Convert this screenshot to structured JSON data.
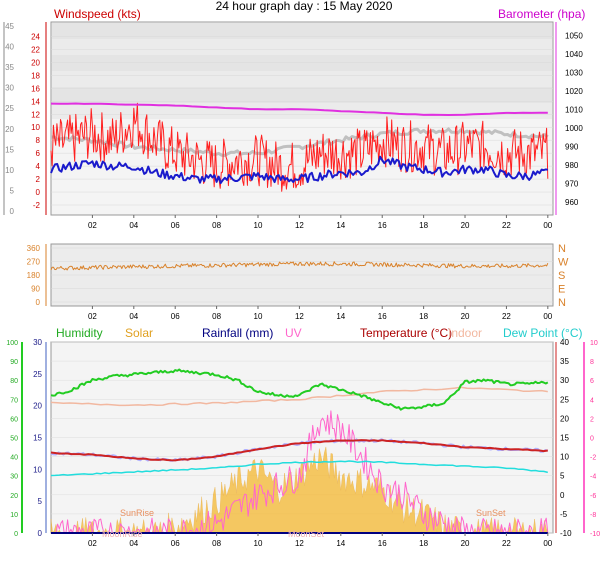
{
  "title": "24 hour graph day : 15 May 2020",
  "colors": {
    "wind": "#ff2020",
    "gust_avg": "#1a1acc",
    "pressure": "#e030e0",
    "direction": "#d9822b",
    "humidity": "#22cc22",
    "solar": "#f5b830",
    "rainfall": "#000080",
    "uv": "#ff66cc",
    "temperature": "#cc2222",
    "indoor": "#f2b8a0",
    "dewpoint": "#22dddd",
    "panel_bg": "#e8e8e8"
  },
  "x_ticks": [
    "02",
    "04",
    "06",
    "08",
    "10",
    "12",
    "14",
    "16",
    "18",
    "20",
    "22",
    "00"
  ],
  "panel1": {
    "left_label": "Windspeed (kts)",
    "right_label": "Barometer (hpa)",
    "left_outer_ticks": [
      "0",
      "5",
      "10",
      "15",
      "20",
      "25",
      "30",
      "35",
      "40",
      "45"
    ],
    "left_inner_ticks": [
      "-2",
      "0",
      "2",
      "4",
      "6",
      "8",
      "10",
      "12",
      "14",
      "16",
      "18",
      "20",
      "22",
      "24"
    ],
    "right_ticks": [
      "960",
      "970",
      "980",
      "990",
      "1000",
      "1010",
      "1020",
      "1030",
      "1040",
      "1050"
    ]
  },
  "panel2": {
    "left_ticks": [
      "0",
      "90",
      "180",
      "270",
      "360"
    ],
    "right_ticks": [
      "N",
      "E",
      "S",
      "W",
      "N"
    ]
  },
  "panel3": {
    "labels": {
      "humidity": "Humidity",
      "solar": "Solar",
      "rainfall": "Rainfall (mm)",
      "uv": "UV",
      "temperature": "Temperature (°C)",
      "indoor": "Indoor",
      "dewpoint": "Dew Point (°C)"
    },
    "humidity_ticks": [
      "0",
      "10",
      "20",
      "30",
      "40",
      "50",
      "60",
      "70",
      "80",
      "90",
      "100"
    ],
    "rain_ticks": [
      "0",
      "5",
      "10",
      "15",
      "20",
      "25",
      "30"
    ],
    "temp_ticks": [
      "-10",
      "-5",
      "0",
      "5",
      "10",
      "15",
      "20",
      "25",
      "30",
      "35",
      "40"
    ],
    "uv_ticks": [
      "-10",
      "-8",
      "-6",
      "-4",
      "-2",
      "0",
      "2",
      "4",
      "6",
      "8",
      "10"
    ],
    "annotations": {
      "sunrise": "SunRise",
      "sunset": "SunSet",
      "moonrise": "MoonRise",
      "moonset": "MoonSet"
    }
  },
  "chart_data": [
    {
      "type": "line",
      "x_unit": "hour",
      "x_range": [
        0,
        24
      ],
      "series": [
        {
          "name": "Windspeed (kts)",
          "axis": "left",
          "x": [
            0,
            1,
            2,
            3,
            4,
            5,
            6,
            7,
            8,
            9,
            10,
            11,
            12,
            13,
            14,
            15,
            16,
            17,
            18,
            19,
            20,
            21,
            22,
            23,
            24
          ],
          "values": [
            7,
            8,
            9,
            8,
            11,
            8,
            6,
            5,
            4,
            5,
            5,
            4,
            4,
            6,
            6,
            6,
            8,
            7,
            7,
            6,
            7,
            7,
            6,
            6,
            6
          ]
        },
        {
          "name": "Average speed",
          "axis": "left",
          "x": [
            0,
            1,
            2,
            3,
            4,
            5,
            6,
            7,
            8,
            9,
            10,
            11,
            12,
            13,
            14,
            15,
            16,
            17,
            18,
            19,
            20,
            21,
            22,
            23,
            24
          ],
          "values": [
            3.5,
            4,
            4.5,
            4,
            4,
            3,
            2.5,
            2,
            2,
            2.2,
            2.5,
            2,
            2,
            2.5,
            3,
            3,
            5,
            4,
            3.5,
            3,
            3.5,
            3.5,
            2.5,
            2.5,
            3
          ]
        },
        {
          "name": "Barometer (hpa)",
          "axis": "right",
          "x": [
            0,
            2,
            4,
            6,
            8,
            10,
            12,
            14,
            16,
            18,
            20,
            22,
            23.9
          ],
          "values": [
            1013,
            1013,
            1012.5,
            1012,
            1011,
            1010,
            1010,
            1009,
            1008,
            1007,
            1007,
            1008,
            1008
          ]
        },
        {
          "name": "Gust trend",
          "axis": "left",
          "x": [
            0,
            2,
            4,
            6,
            8,
            10,
            12,
            14,
            16,
            18,
            20,
            22,
            24
          ],
          "values": [
            8.5,
            8,
            7,
            6.5,
            6,
            6,
            7,
            8,
            9,
            9.5,
            9.5,
            9,
            8.5
          ]
        }
      ],
      "ylim_left": [
        -2,
        25
      ],
      "ylim_right": [
        955,
        1055
      ]
    },
    {
      "type": "line",
      "series": [
        {
          "name": "Wind direction",
          "x": [
            0,
            2,
            4,
            6,
            8,
            10,
            12,
            14,
            16,
            18,
            20,
            22,
            24
          ],
          "values": [
            225,
            230,
            235,
            240,
            245,
            250,
            255,
            255,
            250,
            245,
            240,
            240,
            245
          ]
        }
      ],
      "ylim": [
        0,
        360
      ]
    },
    {
      "type": "area",
      "series": [
        {
          "name": "Humidity",
          "axis": "humidity",
          "x": [
            0,
            1,
            2,
            3,
            4,
            5,
            6,
            7,
            8,
            9,
            10,
            11,
            12,
            13,
            14,
            15,
            16,
            17,
            18,
            19,
            20,
            21,
            22,
            23,
            24
          ],
          "values": [
            72,
            75,
            80,
            82,
            83,
            84,
            85,
            84,
            83,
            80,
            74,
            72,
            72,
            78,
            75,
            72,
            68,
            65,
            66,
            68,
            79,
            80,
            78,
            78,
            79
          ]
        },
        {
          "name": "Solar",
          "axis": "rain",
          "x": [
            0,
            5,
            6,
            7,
            8,
            9,
            10,
            11,
            12,
            13,
            14,
            15,
            16,
            17,
            18,
            19,
            20,
            24
          ],
          "values": [
            0,
            0,
            1,
            3,
            5,
            8,
            10,
            7,
            9,
            12,
            9,
            8,
            7,
            4,
            3,
            1,
            0,
            0
          ]
        },
        {
          "name": "UV",
          "axis": "uv",
          "x": [
            0,
            6,
            8,
            10,
            12,
            13,
            14,
            15,
            16,
            17,
            18,
            19,
            20,
            24
          ],
          "values": [
            -10,
            -10,
            -9,
            -6,
            -4,
            2,
            1,
            -2,
            -5,
            -6,
            -8,
            -9,
            -10,
            -10
          ]
        },
        {
          "name": "Temperature (°C)",
          "axis": "temp",
          "x": [
            0,
            2,
            4,
            6,
            8,
            10,
            12,
            14,
            16,
            18,
            20,
            22,
            24
          ],
          "values": [
            11,
            10.5,
            9.5,
            9,
            10,
            12,
            13.5,
            14.2,
            14.2,
            13.5,
            12.5,
            12,
            11.5
          ]
        },
        {
          "name": "Indoor",
          "axis": "temp",
          "x": [
            0,
            4,
            8,
            12,
            16,
            20,
            24
          ],
          "values": [
            24,
            23.5,
            24,
            25,
            27,
            28,
            27
          ]
        },
        {
          "name": "Dew Point (°C)",
          "axis": "temp",
          "x": [
            0,
            2,
            4,
            6,
            8,
            10,
            12,
            14,
            16,
            18,
            20,
            22,
            24
          ],
          "values": [
            5,
            5.5,
            6,
            6.5,
            7,
            8,
            8.5,
            8.8,
            8.5,
            8,
            7.5,
            7,
            6
          ]
        },
        {
          "name": "Rainfall (mm)",
          "axis": "rain",
          "x": [
            0,
            24
          ],
          "values": [
            0,
            0
          ]
        }
      ],
      "annotations": [
        "SunRise",
        "SunSet",
        "MoonRise",
        "MoonSet"
      ]
    }
  ]
}
